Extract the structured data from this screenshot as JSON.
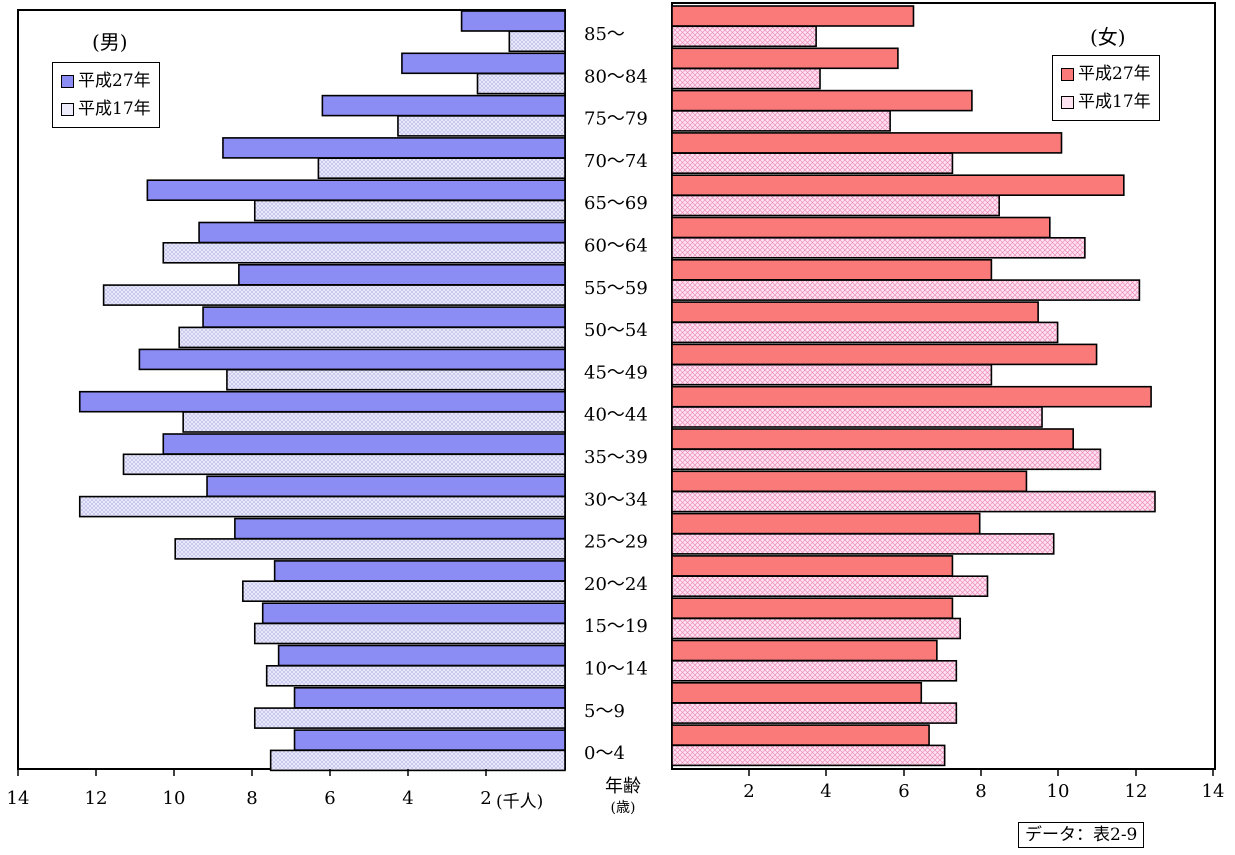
{
  "chart_data": [
    {
      "type": "bar",
      "title": "(男)",
      "orientation": "horizontal-mirrored",
      "categories": [
        "85～",
        "80～84",
        "75～79",
        "70～74",
        "65～69",
        "60～64",
        "55～59",
        "50～54",
        "45～49",
        "40～44",
        "35～39",
        "30～34",
        "25～29",
        "20～24",
        "15～19",
        "10～14",
        "5～9",
        "0～4"
      ],
      "series": [
        {
          "name": "平成27年",
          "color": "#8c8cf5",
          "values": [
            2.6,
            4.1,
            6.1,
            8.6,
            10.5,
            9.2,
            8.2,
            9.1,
            10.7,
            12.2,
            10.1,
            9.0,
            8.3,
            7.3,
            7.6,
            7.2,
            6.8,
            6.8
          ]
        },
        {
          "name": "平成17年",
          "color": "#e0e0f8",
          "values": [
            1.4,
            2.2,
            4.2,
            6.2,
            7.8,
            10.1,
            11.6,
            9.7,
            8.5,
            9.6,
            11.1,
            12.2,
            9.8,
            8.1,
            7.8,
            7.5,
            7.8,
            7.4
          ]
        }
      ],
      "xlim": [
        0,
        14
      ],
      "x_ticks": [
        "14",
        "12",
        "10",
        "8",
        "6",
        "4",
        "2"
      ],
      "unit": "(千人)"
    },
    {
      "type": "bar",
      "title": "(女)",
      "orientation": "horizontal",
      "categories": [
        "85～",
        "80～84",
        "75～79",
        "70～74",
        "65～69",
        "60～64",
        "55～59",
        "50～54",
        "45～49",
        "40～44",
        "35～39",
        "30～34",
        "25～29",
        "20～24",
        "15～19",
        "10～14",
        "5～9",
        "0～4"
      ],
      "series": [
        {
          "name": "平成27年",
          "color": "#fa7a7a",
          "values": [
            6.2,
            5.8,
            7.7,
            10.0,
            11.6,
            9.7,
            8.2,
            9.4,
            10.9,
            12.3,
            10.3,
            9.1,
            7.9,
            7.2,
            7.2,
            6.8,
            6.4,
            6.6
          ]
        },
        {
          "name": "平成17年",
          "color": "#fbd7ea",
          "values": [
            3.7,
            3.8,
            5.6,
            7.2,
            8.4,
            10.6,
            12.0,
            9.9,
            8.2,
            9.5,
            11.0,
            12.4,
            9.8,
            8.1,
            7.4,
            7.3,
            7.3,
            7.0
          ]
        }
      ],
      "xlim": [
        0,
        14
      ],
      "x_ticks": [
        "2",
        "4",
        "6",
        "8",
        "10",
        "12",
        "14"
      ]
    }
  ],
  "age_axis": {
    "title": "年齢",
    "unit": "(歳)"
  },
  "source_note": "データ：表2-9"
}
